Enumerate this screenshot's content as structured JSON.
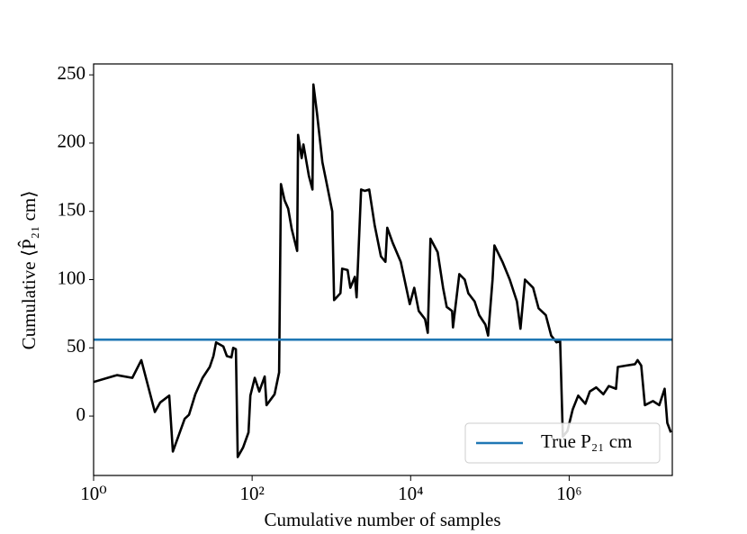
{
  "chart_data": {
    "type": "line",
    "xlabel": "Cumulative number of samples",
    "ylabel": "Cumulative ⟨P̂₂₁ cm⟩",
    "xscale": "log",
    "xlim": [
      1,
      20000000
    ],
    "ylim": [
      -43.5,
      258
    ],
    "xticks": [
      {
        "value": 1,
        "label": "10⁰"
      },
      {
        "value": 100,
        "label": "10²"
      },
      {
        "value": 10000,
        "label": "10⁴"
      },
      {
        "value": 1000000,
        "label": "10⁶"
      }
    ],
    "yticks": [
      0,
      50,
      100,
      150,
      200,
      250
    ],
    "grid": false,
    "legend": "lower right",
    "x": [
      1,
      1.97,
      3.08,
      4.0,
      5.93,
      6.93,
      9.0,
      10,
      14.1,
      16,
      19.2,
      23.7,
      29.2,
      32.5,
      35.1,
      43.3,
      48,
      54.8,
      57.7,
      62.4,
      65.8,
      76.9,
      90,
      95,
      108,
      123,
      144,
      152,
      192,
      219,
      231,
      257,
      285,
      316,
      370,
      380,
      422,
      444,
      520,
      577,
      593,
      658,
      770,
      855,
      1026,
      1082,
      1300,
      1368,
      1602,
      1734,
      1974,
      2080,
      2371,
      2633,
      3000,
      3511,
      4217,
      4808,
      5070,
      5929,
      7500,
      9745,
      11100,
      12650,
      15200,
      16440,
      17780,
      21930,
      25650,
      28500,
      33340,
      34200,
      41100,
      48100,
      53400,
      64100,
      73100,
      87700,
      94900,
      108000,
      114000,
      144000,
      178000,
      219000,
      243000,
      277000,
      351000,
      411000,
      507000,
      593000,
      693000,
      769000,
      832000,
      949000,
      1110000,
      1300000,
      1600000,
      1820000,
      2190000,
      2700000,
      3160000,
      3900000,
      4110000,
      5200000,
      6760000,
      7300000,
      8110000,
      9020000,
      11400000,
      13700000,
      16000000,
      17300000,
      19200000
    ],
    "series": [
      {
        "color": "#000000",
        "values": [
          25,
          30,
          28,
          41,
          3,
          10,
          15,
          -26,
          -2,
          1,
          16,
          28,
          36,
          44,
          54,
          51,
          44,
          43,
          50,
          49,
          -30,
          -23,
          -12,
          15,
          28,
          18,
          29,
          8,
          16,
          32,
          170,
          158,
          152,
          137,
          121,
          206,
          189,
          199,
          176,
          166,
          243,
          222,
          186,
          173,
          150,
          85,
          90,
          108,
          107,
          94,
          102,
          87,
          166,
          165,
          166,
          140,
          117,
          113,
          138,
          127,
          113,
          82,
          94,
          77,
          71,
          61,
          130,
          120,
          94,
          80,
          77,
          65,
          104,
          100,
          90,
          84,
          74,
          67,
          59,
          100,
          125,
          113,
          100,
          84,
          64,
          100,
          94,
          79,
          74,
          59,
          54,
          55,
          -15,
          -11,
          5,
          15,
          9,
          18,
          21,
          16,
          22,
          20,
          36,
          37,
          38,
          41,
          37,
          8,
          11,
          8,
          20,
          -5,
          -12
        ]
      }
    ],
    "reference_line": {
      "name": "True P₂₁ cm",
      "value": 56,
      "color": "#1f77b4"
    }
  }
}
